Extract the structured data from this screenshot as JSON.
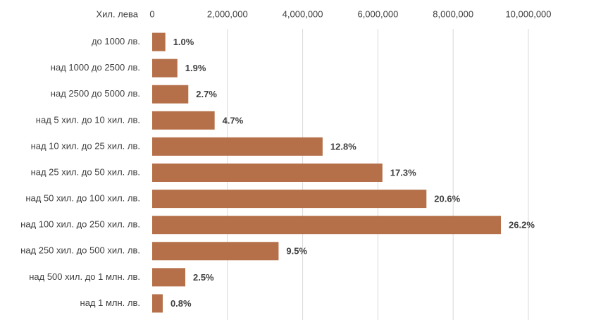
{
  "chart_data": {
    "type": "bar",
    "orientation": "horizontal",
    "axis_title": "Хил. лева",
    "categories": [
      "до 1000 лв.",
      "над 1000 до 2500 лв.",
      "над 2500 до 5000 лв.",
      "над 5 хил. до 10 хил. лв.",
      "над 10 хил. до 25 хил. лв.",
      "над 25 хил. до 50 хил. лв.",
      "над 50 хил. до 100 хил. лв.",
      "над 100 хил. до 250 хил. лв.",
      "над 250 хил. до 500 хил. лв.",
      "над 500 хил. до 1 млн. лв.",
      "над 1 млн. лв."
    ],
    "values": [
      350000,
      670000,
      960000,
      1660000,
      4530000,
      6120000,
      7290000,
      9270000,
      3360000,
      880000,
      280000
    ],
    "value_labels": [
      "1.0%",
      "1.9%",
      "2.7%",
      "4.7%",
      "12.8%",
      "17.3%",
      "20.6%",
      "26.2%",
      "9.5%",
      "2.5%",
      "0.8%"
    ],
    "color": "#b5704a",
    "xlim": [
      0,
      10000000
    ],
    "xticks": [
      0,
      {
        "value": 2000000,
        "label": "2,000,000"
      },
      {
        "value": 4000000,
        "label": "4,000,000"
      },
      {
        "value": 6000000,
        "label": "6,000,000"
      },
      {
        "value": 8000000,
        "label": "8,000,000"
      },
      {
        "value": 10000000,
        "label": "10,000,000"
      }
    ],
    "grid": true
  }
}
